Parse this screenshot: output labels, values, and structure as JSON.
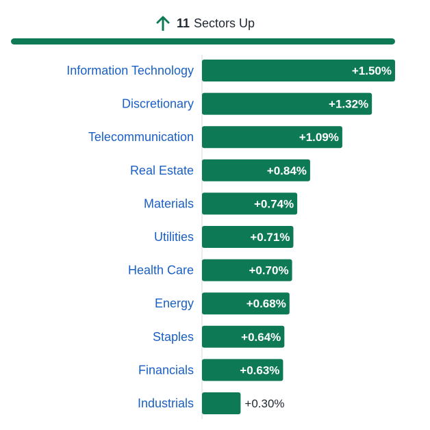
{
  "header": {
    "count": "11",
    "label": "Sectors Up",
    "icon": "arrow-up-icon"
  },
  "colors": {
    "positive": "#0e7a55",
    "category_text": "#1a5fc4",
    "axis": "#d9d9d9",
    "value_inside": "#ffffff",
    "value_outside": "#1f2630"
  },
  "chart_data": {
    "type": "bar",
    "orientation": "horizontal",
    "categories": [
      "Information Technology",
      "Discretionary",
      "Telecommunication",
      "Real Estate",
      "Materials",
      "Utilities",
      "Health Care",
      "Energy",
      "Staples",
      "Financials",
      "Industrials"
    ],
    "values": [
      1.5,
      1.32,
      1.09,
      0.84,
      0.74,
      0.71,
      0.7,
      0.68,
      0.64,
      0.63,
      0.3
    ],
    "labels": [
      "+1.50%",
      "+1.32%",
      "+1.09%",
      "+0.84%",
      "+0.74%",
      "+0.71%",
      "+0.70%",
      "+0.68%",
      "+0.64%",
      "+0.63%",
      "+0.30%"
    ],
    "xlim": [
      0,
      1.5
    ],
    "unit": "%"
  }
}
